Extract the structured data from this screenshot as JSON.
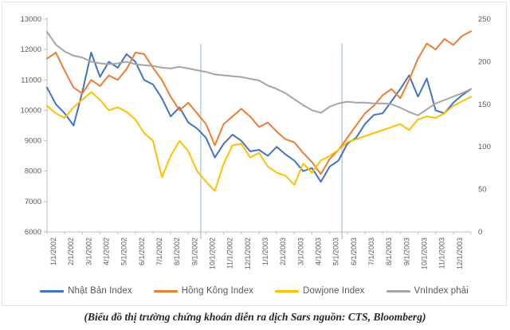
{
  "caption": "(Biểu đồ thị trường chứng khoán diễn ra dịch Sars nguồn: CTS, Bloomberg)",
  "chart_data": {
    "type": "line",
    "title": "",
    "x_labels": [
      "1/1/2002",
      "2/1/2002",
      "3/1/2002",
      "4/1/2002",
      "5/1/2002",
      "6/1/2002",
      "7/1/2002",
      "8/1/2002",
      "9/1/2002",
      "10/1/2002",
      "11/1/2002",
      "12/1/2002",
      "1/1/2003",
      "2/1/2003",
      "3/1/2003",
      "4/1/2003",
      "5/1/2003",
      "6/1/2003",
      "7/1/2003",
      "8/1/2003",
      "9/1/2003",
      "10/1/2003",
      "11/1/2003",
      "12/1/2003"
    ],
    "left_axis": {
      "min": 6000,
      "max": 13000,
      "step": 1000,
      "ticks": [
        "13000",
        "12000",
        "11000",
        "10000",
        "9000",
        "8000",
        "7000",
        "6000"
      ]
    },
    "right_axis": {
      "min": 0,
      "max": 250,
      "step": 50,
      "ticks": [
        "250",
        "200",
        "150",
        "100",
        "50",
        "0"
      ]
    },
    "grid": false,
    "legend_position": "bottom",
    "x_start_month": 0,
    "x_step_months": 0.5,
    "annotations": {
      "vlines_months": [
        8.7,
        16.7
      ]
    },
    "colors": {
      "axis": "#BFBFBF",
      "tick_text": "#595959",
      "vline": "#9DC3E6"
    },
    "series": [
      {
        "key": "nhat-ban-index",
        "name": "Nhật Bản Index",
        "color": "#4472C4",
        "axis": "left",
        "values": [
          10750,
          10200,
          9900,
          9500,
          10600,
          11900,
          11100,
          11600,
          11400,
          11850,
          11600,
          11000,
          10850,
          10400,
          9800,
          10100,
          9600,
          9400,
          9100,
          8450,
          8900,
          9200,
          9000,
          8650,
          8700,
          8500,
          8800,
          8550,
          8350,
          8000,
          8100,
          7650,
          8150,
          8350,
          8900,
          9100,
          9550,
          9850,
          9900,
          10300,
          10700,
          11150,
          10450,
          11050,
          10000,
          9900,
          10250,
          10500,
          10700
        ]
      },
      {
        "key": "hong-kong-index",
        "name": "Hồng Kông Index",
        "color": "#ED7D31",
        "axis": "left",
        "values": [
          11700,
          11900,
          11300,
          10750,
          10550,
          11000,
          10800,
          11150,
          11000,
          11350,
          11900,
          11850,
          11400,
          11000,
          10450,
          10000,
          10250,
          9900,
          9550,
          8850,
          9550,
          9800,
          10050,
          9800,
          9450,
          9600,
          9300,
          9050,
          8950,
          8600,
          8300,
          7900,
          8400,
          8700,
          9100,
          9500,
          9900,
          10150,
          10500,
          10700,
          10400,
          11000,
          11700,
          12200,
          12000,
          12350,
          12150,
          12450,
          12600
        ]
      },
      {
        "key": "dowjone-index",
        "name": "Dowjone Index",
        "color": "#FFC000",
        "axis": "left",
        "values": [
          10150,
          9900,
          9750,
          10100,
          10350,
          10600,
          10350,
          10000,
          10100,
          9950,
          9700,
          9250,
          9000,
          7800,
          8500,
          9000,
          8650,
          8000,
          7650,
          7350,
          8250,
          8850,
          8900,
          8450,
          8600,
          8150,
          7950,
          7850,
          7550,
          8250,
          7950,
          8350,
          8500,
          8700,
          8950,
          9050,
          9150,
          9250,
          9350,
          9450,
          9550,
          9350,
          9700,
          9800,
          9750,
          9900,
          10150,
          10300,
          10450
        ]
      },
      {
        "key": "vnindex-phai",
        "name": "VnIndex phải",
        "color": "#A5A5A5",
        "axis": "right",
        "values": [
          235,
          220,
          212,
          207,
          205,
          200,
          198,
          197,
          198,
          200,
          197,
          196,
          195,
          193,
          192,
          194,
          192,
          190,
          188,
          185,
          184,
          183,
          182,
          180,
          178,
          172,
          168,
          163,
          156,
          149,
          143,
          140,
          147,
          151,
          153,
          152,
          152,
          151,
          151,
          150,
          146,
          141,
          137,
          144,
          151,
          155,
          159,
          163,
          168
        ]
      }
    ]
  }
}
